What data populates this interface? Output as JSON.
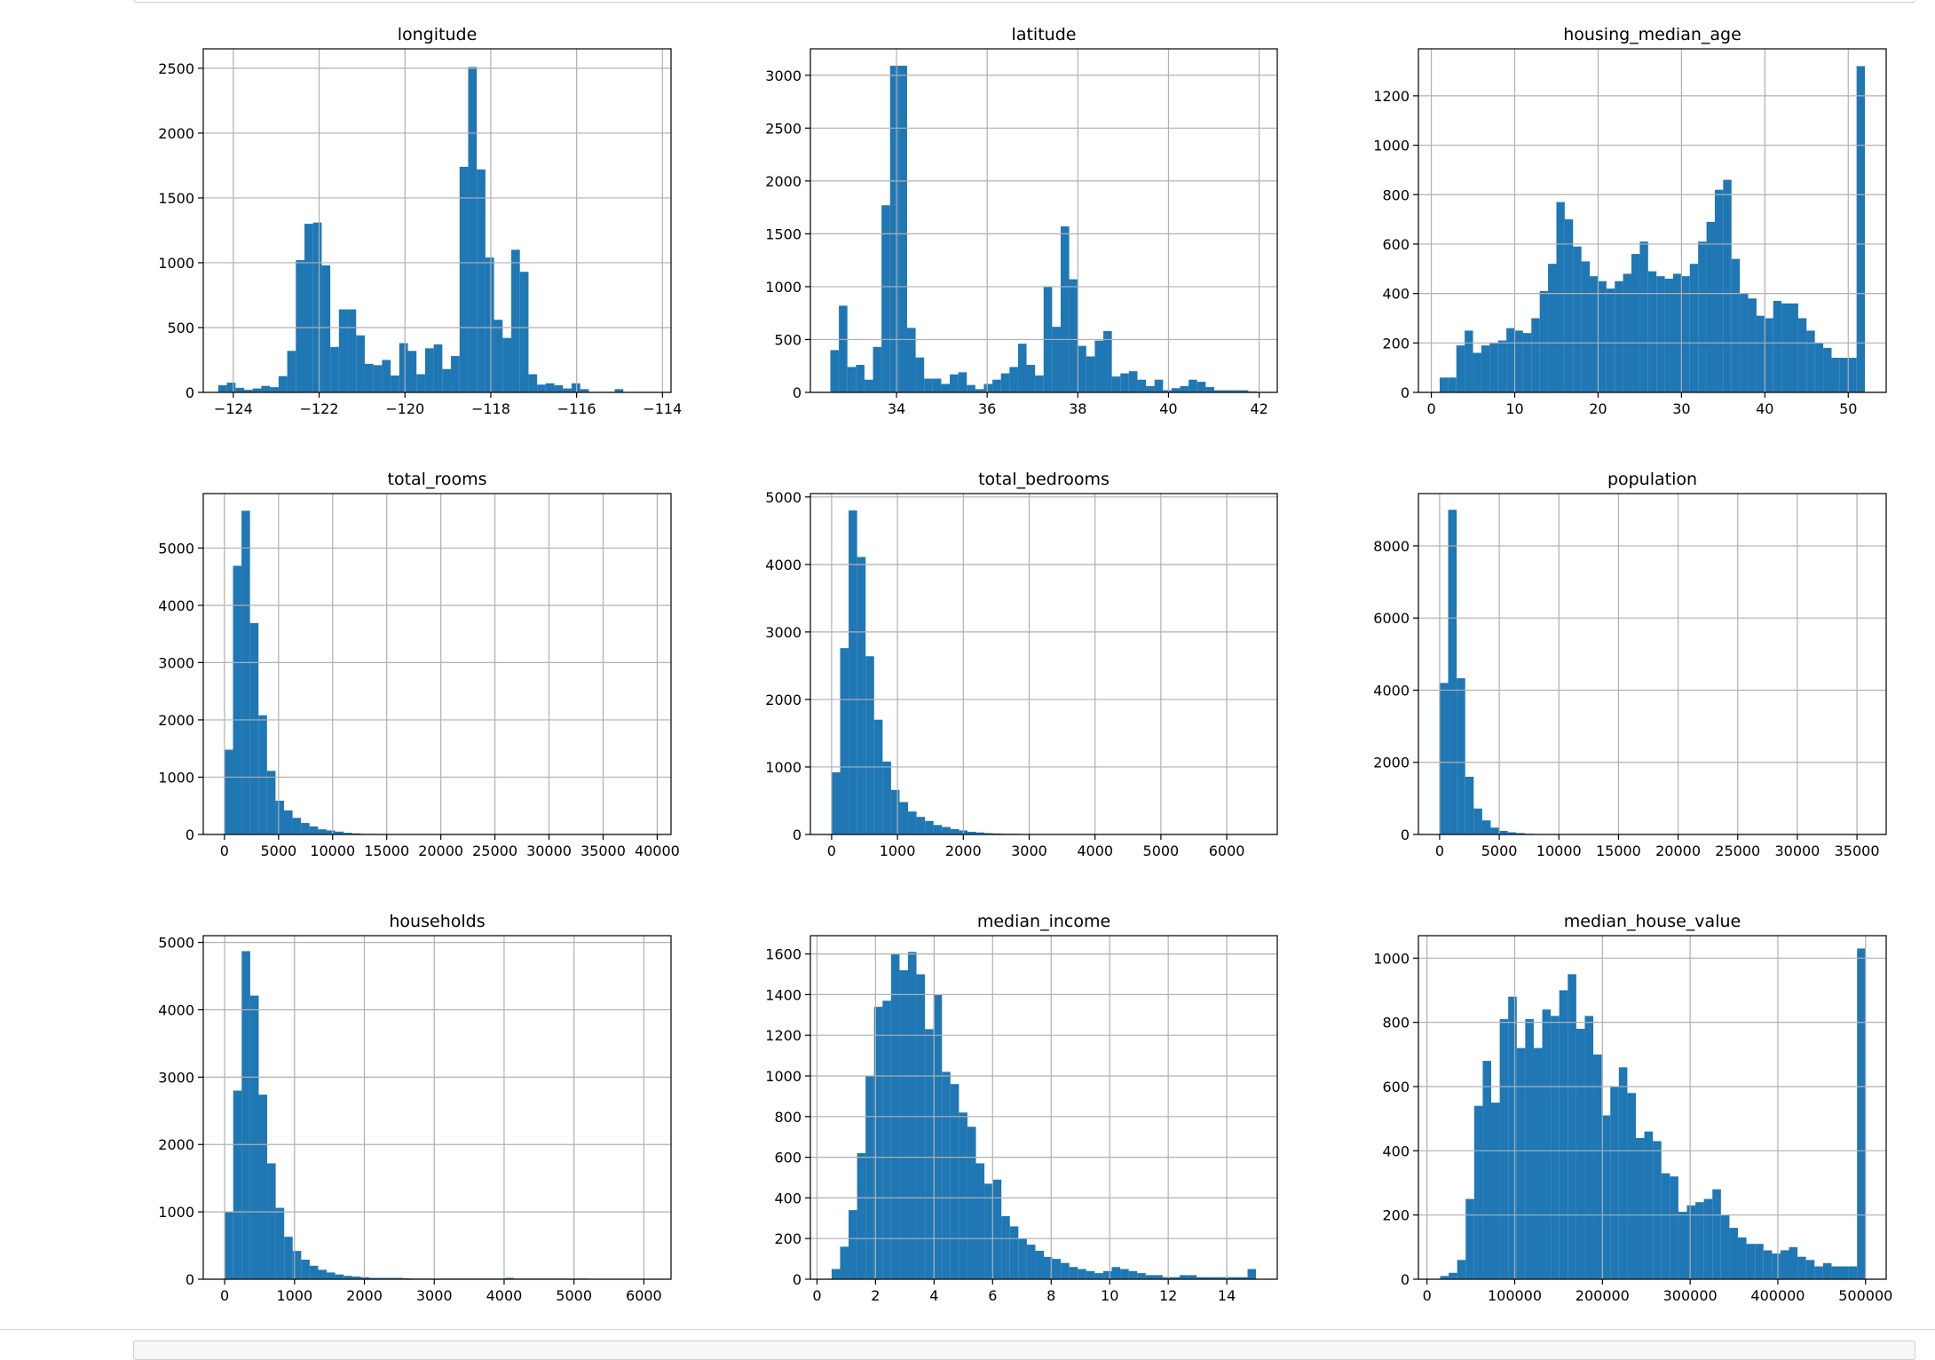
{
  "style": {
    "bar_color": "#1f77b4",
    "grid_color": "#b0b0b0",
    "axis_color": "#000000"
  },
  "chart_data": [
    {
      "type": "bar",
      "title": "longitude",
      "xlim": [
        -124.7,
        -113.8
      ],
      "ylim": [
        0,
        2650
      ],
      "xticks": [
        -124,
        -122,
        -120,
        -118,
        -116,
        -114
      ],
      "yticks": [
        0,
        500,
        1000,
        1500,
        2000,
        2500
      ],
      "grid": true,
      "bin_range": [
        -124.35,
        -114.31
      ],
      "values": [
        55,
        75,
        35,
        20,
        30,
        50,
        40,
        125,
        320,
        1020,
        1300,
        1310,
        980,
        350,
        640,
        640,
        440,
        220,
        210,
        250,
        130,
        380,
        320,
        140,
        340,
        370,
        180,
        280,
        1740,
        2510,
        1720,
        1040,
        560,
        420,
        1100,
        930,
        140,
        60,
        70,
        55,
        30,
        70,
        25,
        0,
        0,
        0,
        25,
        0,
        0,
        0
      ]
    },
    {
      "type": "bar",
      "title": "latitude",
      "xlim": [
        32.1,
        42.4
      ],
      "ylim": [
        0,
        3250
      ],
      "xticks": [
        34,
        36,
        38,
        40,
        42
      ],
      "yticks": [
        0,
        500,
        1000,
        1500,
        2000,
        2500,
        3000
      ],
      "grid": true,
      "bin_range": [
        32.54,
        41.95
      ],
      "values": [
        400,
        820,
        240,
        260,
        120,
        430,
        1770,
        3090,
        3090,
        610,
        330,
        130,
        130,
        80,
        170,
        190,
        70,
        30,
        80,
        120,
        180,
        240,
        460,
        260,
        160,
        1000,
        620,
        1570,
        1070,
        440,
        340,
        490,
        580,
        150,
        180,
        200,
        120,
        60,
        120,
        20,
        40,
        60,
        120,
        100,
        50,
        20,
        20,
        20,
        20,
        10
      ]
    },
    {
      "type": "bar",
      "title": "housing_median_age",
      "xlim": [
        -1.55,
        54.55
      ],
      "ylim": [
        0,
        1390
      ],
      "xticks": [
        0,
        10,
        20,
        30,
        40,
        50
      ],
      "yticks": [
        0,
        200,
        400,
        600,
        800,
        1000,
        1200
      ],
      "grid": true,
      "bin_range": [
        1,
        52
      ],
      "values": [
        60,
        60,
        190,
        250,
        160,
        190,
        200,
        210,
        260,
        250,
        240,
        300,
        410,
        520,
        770,
        700,
        590,
        530,
        470,
        450,
        420,
        450,
        480,
        560,
        610,
        490,
        470,
        460,
        480,
        470,
        520,
        610,
        690,
        820,
        860,
        540,
        400,
        380,
        310,
        300,
        370,
        360,
        360,
        300,
        250,
        200,
        180,
        140,
        140,
        140,
        1320
      ]
    },
    {
      "type": "bar",
      "title": "total_rooms",
      "xlim": [
        -1960,
        41280
      ],
      "ylim": [
        0,
        5950
      ],
      "xticks": [
        0,
        5000,
        10000,
        15000,
        20000,
        25000,
        30000,
        35000,
        40000
      ],
      "yticks": [
        0,
        1000,
        2000,
        3000,
        4000,
        5000
      ],
      "grid": true,
      "bin_range": [
        2,
        39320
      ],
      "values": [
        1480,
        4690,
        5650,
        3690,
        2080,
        1110,
        590,
        420,
        290,
        200,
        140,
        90,
        70,
        50,
        30,
        20,
        10,
        10,
        5,
        5,
        5,
        5,
        0,
        0,
        0,
        0,
        0,
        0,
        0,
        0,
        0,
        0,
        0,
        0,
        0,
        0,
        0,
        0,
        0,
        0,
        0,
        0,
        0,
        0,
        0,
        0,
        0,
        0,
        0,
        0
      ]
    },
    {
      "type": "bar",
      "title": "total_bedrooms",
      "xlim": [
        -322,
        6767
      ],
      "ylim": [
        0,
        5050
      ],
      "xticks": [
        0,
        1000,
        2000,
        3000,
        4000,
        5000,
        6000
      ],
      "yticks": [
        0,
        1000,
        2000,
        3000,
        4000,
        5000
      ],
      "grid": true,
      "bin_range": [
        1,
        6445
      ],
      "values": [
        920,
        2760,
        4800,
        4110,
        2640,
        1700,
        1080,
        660,
        480,
        340,
        260,
        200,
        140,
        110,
        80,
        60,
        40,
        30,
        20,
        15,
        10,
        10,
        5,
        5,
        5,
        0,
        0,
        0,
        0,
        0,
        0,
        0,
        0,
        0,
        0,
        0,
        0,
        0,
        0,
        0,
        0,
        0,
        0,
        0,
        0,
        0,
        0,
        0,
        0,
        0
      ]
    },
    {
      "type": "bar",
      "title": "population",
      "xlim": [
        -1780,
        37450
      ],
      "ylim": [
        0,
        9450
      ],
      "xticks": [
        0,
        5000,
        10000,
        15000,
        20000,
        25000,
        30000,
        35000
      ],
      "yticks": [
        0,
        2000,
        4000,
        6000,
        8000
      ],
      "grid": true,
      "bin_range": [
        3,
        35682
      ],
      "values": [
        4200,
        9000,
        4330,
        1600,
        720,
        390,
        190,
        100,
        60,
        40,
        20,
        10,
        10,
        5,
        5,
        0,
        0,
        0,
        0,
        0,
        0,
        0,
        0,
        0,
        0,
        0,
        0,
        0,
        0,
        0,
        0,
        0,
        0,
        0,
        0,
        0,
        0,
        0,
        0,
        0,
        0,
        0,
        0,
        0,
        0,
        0,
        0,
        0,
        0,
        0
      ]
    },
    {
      "type": "bar",
      "title": "households",
      "xlim": [
        -306,
        6389
      ],
      "ylim": [
        0,
        5100
      ],
      "xticks": [
        0,
        1000,
        2000,
        3000,
        4000,
        5000,
        6000
      ],
      "yticks": [
        0,
        1000,
        2000,
        3000,
        4000,
        5000
      ],
      "grid": true,
      "bin_range": [
        1,
        6082
      ],
      "values": [
        1000,
        2800,
        4870,
        4210,
        2740,
        1720,
        1060,
        630,
        420,
        290,
        200,
        140,
        100,
        70,
        50,
        40,
        30,
        20,
        20,
        20,
        20,
        15,
        10,
        10,
        10,
        10,
        10,
        10,
        10,
        10,
        10,
        10,
        10,
        20,
        10,
        10,
        10,
        10,
        10,
        10,
        10,
        10,
        10,
        5,
        5,
        5,
        5,
        5,
        5,
        5
      ]
    },
    {
      "type": "bar",
      "title": "median_income",
      "xlim": [
        -0.225,
        15.725
      ],
      "ylim": [
        0,
        1690
      ],
      "xticks": [
        0,
        2,
        4,
        6,
        8,
        10,
        12,
        14
      ],
      "yticks": [
        0,
        200,
        400,
        600,
        800,
        1000,
        1200,
        1400,
        1600
      ],
      "grid": true,
      "bin_range": [
        0.5,
        15.0
      ],
      "values": [
        50,
        160,
        340,
        620,
        1000,
        1340,
        1370,
        1600,
        1520,
        1610,
        1500,
        1230,
        1400,
        1020,
        960,
        820,
        750,
        570,
        470,
        490,
        310,
        260,
        200,
        170,
        140,
        110,
        100,
        80,
        60,
        50,
        40,
        30,
        40,
        60,
        50,
        40,
        30,
        20,
        20,
        10,
        10,
        20,
        20,
        10,
        10,
        10,
        10,
        10,
        10,
        50
      ]
    },
    {
      "type": "bar",
      "title": "median_house_value",
      "xlim": [
        -9800,
        523500
      ],
      "ylim": [
        0,
        1070
      ],
      "xticks": [
        0,
        100000,
        200000,
        300000,
        400000,
        500000
      ],
      "yticks": [
        0,
        200,
        400,
        600,
        800,
        1000
      ],
      "grid": true,
      "bin_range": [
        14999,
        500001
      ],
      "values": [
        10,
        20,
        60,
        250,
        540,
        680,
        550,
        810,
        880,
        720,
        810,
        720,
        840,
        820,
        900,
        950,
        780,
        820,
        700,
        510,
        600,
        660,
        580,
        440,
        460,
        430,
        330,
        320,
        210,
        230,
        240,
        250,
        280,
        200,
        160,
        130,
        110,
        110,
        90,
        80,
        90,
        100,
        70,
        60,
        40,
        50,
        40,
        40,
        40,
        1030
      ]
    }
  ]
}
